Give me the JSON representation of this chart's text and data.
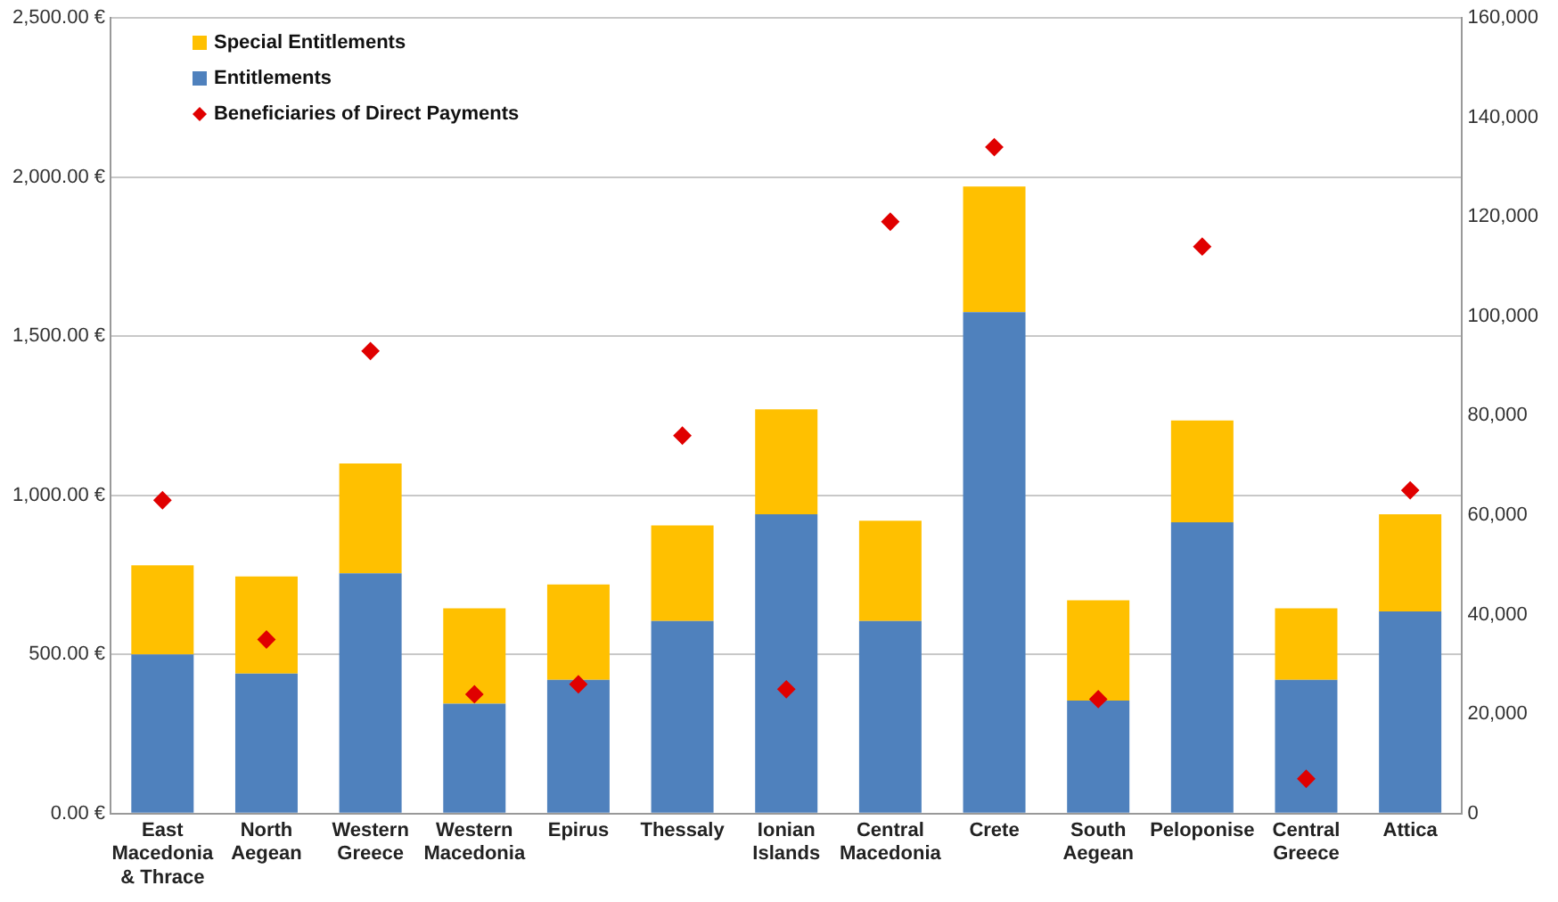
{
  "chart_data": {
    "type": "bar",
    "stacked": true,
    "categories": [
      "East Macedonia & Thrace",
      "North Aegean",
      "Western Greece",
      "Western Macedonia",
      "Epirus",
      "Thessaly",
      "Ionian Islands",
      "Central Macedonia",
      "Crete",
      "South Aegean",
      "Peloponise",
      "Central Greece",
      "Attica"
    ],
    "series": [
      {
        "name": "Entitlements",
        "color": "#4f81bd",
        "values": [
          500,
          440,
          755,
          345,
          420,
          605,
          940,
          605,
          1575,
          355,
          915,
          420,
          635
        ]
      },
      {
        "name": "Special Entitlements",
        "color": "#ffc000",
        "values": [
          280,
          305,
          345,
          300,
          300,
          300,
          330,
          315,
          395,
          315,
          320,
          225,
          305
        ]
      },
      {
        "name": "Beneficiaries of Direct Payments",
        "type": "scatter",
        "axis": "y2",
        "color": "#e00000",
        "marker": "diamond",
        "x": [
          "East Macedonia & Thrace",
          "North Aegean",
          "Western Greece",
          "Western Macedonia",
          "Epirus",
          "Thessaly",
          "Ionian Islands",
          "Central Macedonia",
          "Crete",
          "South Aegean",
          "Peloponise",
          "Central Greece",
          "Attica"
        ],
        "values": [
          63000,
          35000,
          93000,
          24000,
          26000,
          76000,
          25000,
          119000,
          134000,
          23000,
          114000,
          7000,
          65000
        ]
      }
    ],
    "ylim": [
      0,
      2500
    ],
    "yticks": [
      {
        "value": 0,
        "label": "0.00 €"
      },
      {
        "value": 500,
        "label": "500.00 €"
      },
      {
        "value": 1000,
        "label": "1,000.00 €"
      },
      {
        "value": 1500,
        "label": "1,500.00 €"
      },
      {
        "value": 2000,
        "label": "2,000.00 €"
      },
      {
        "value": 2500,
        "label": "2,500.00 €"
      }
    ],
    "y2lim": [
      0,
      160000
    ],
    "y2ticks": [
      0,
      {
        "value": 20000,
        "label": "20,000"
      },
      {
        "value": 40000,
        "label": "40,000"
      },
      {
        "value": 60000,
        "label": "60,000"
      },
      {
        "value": 80000,
        "label": "80,000"
      },
      {
        "value": 100000,
        "label": "100,000"
      },
      {
        "value": 120000,
        "label": "120,000"
      },
      {
        "value": 140000,
        "label": "140,000"
      },
      {
        "value": 160000,
        "label": "160,000"
      }
    ],
    "grid": "y",
    "legend": "top left"
  }
}
